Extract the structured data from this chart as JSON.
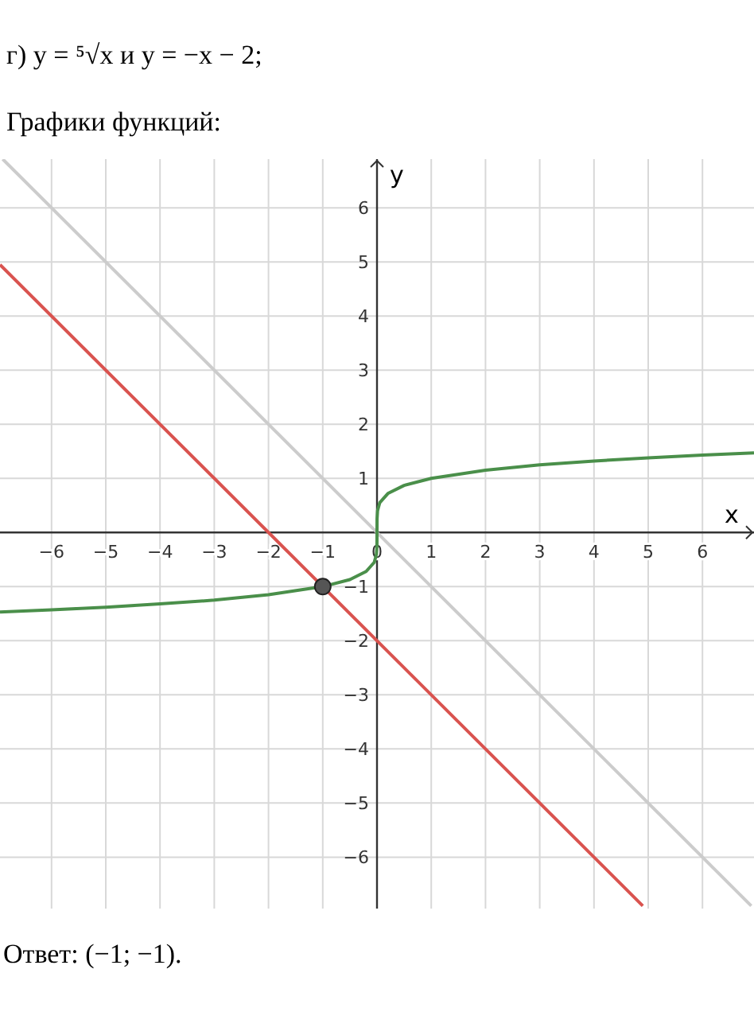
{
  "chart_data": {
    "type": "line",
    "title": "г) y = ⁵√x  и  y = −x − 2;",
    "subtitle": "Графики функций:",
    "xlabel": "x",
    "ylabel": "y",
    "annotations": [
      "Ответ:  (−1; −1)."
    ],
    "xlim": [
      -6.95,
      6.95
    ],
    "ylim": [
      -6.95,
      6.9
    ],
    "xticks": [
      -6,
      -5,
      -4,
      -3,
      -2,
      -1,
      0,
      1,
      2,
      3,
      4,
      5,
      6
    ],
    "yticks": [
      -6,
      -5,
      -4,
      -3,
      -2,
      -1,
      1,
      2,
      3,
      4,
      5,
      6
    ],
    "grid": true,
    "line_style": "solid",
    "series": [
      {
        "color": "#cccccc",
        "x": [
          -6.9,
          6.9
        ],
        "values": [
          6.9,
          -6.9
        ]
      },
      {
        "color": "#d9534f",
        "x": [
          -6.95,
          4.9
        ],
        "values": [
          4.95,
          -6.9
        ]
      },
      {
        "color": "#4a8f4a",
        "x": [
          -6.95,
          -6,
          -5,
          -4,
          -3,
          -2,
          -1,
          -0.5,
          -0.2,
          -0.05,
          -0.01,
          -0.001,
          0,
          0.001,
          0.01,
          0.05,
          0.2,
          0.5,
          1,
          2,
          3,
          4,
          5,
          6,
          6.95
        ],
        "values": [
          -1.47,
          -1.43,
          -1.38,
          -1.32,
          -1.25,
          -1.15,
          -1,
          -0.87,
          -0.72,
          -0.55,
          -0.4,
          -0.25,
          0,
          0.25,
          0.4,
          0.55,
          0.72,
          0.87,
          1,
          1.15,
          1.25,
          1.32,
          1.38,
          1.43,
          1.47
        ]
      },
      {
        "type": "scatter",
        "color": "#555555",
        "marker": "circle",
        "x": [
          -1
        ],
        "values": [
          -1
        ]
      }
    ]
  }
}
